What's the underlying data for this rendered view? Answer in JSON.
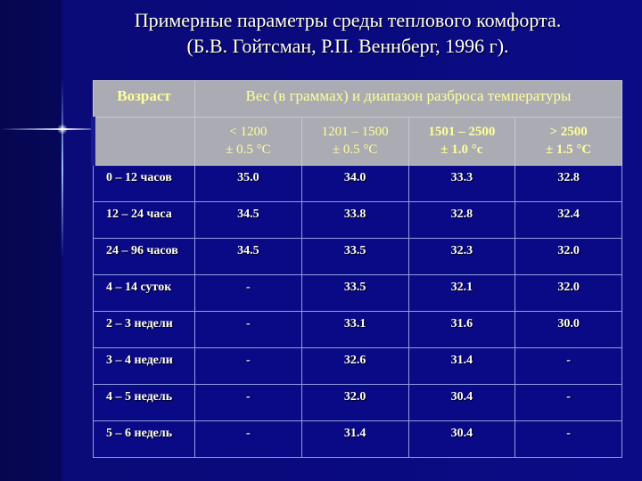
{
  "title": {
    "line1": "Примерные параметры среды теплового комфорта.",
    "line2": "(Б.В. Гойтсман, Р.П. Веннберг, 1996 г)."
  },
  "table": {
    "age_header": "Возраст",
    "weight_header": "Вес (в граммах) и диапазон разброса температуры",
    "columns": [
      {
        "weight": "< 1200",
        "range": "± 0.5 °C"
      },
      {
        "weight": "1201 – 1500",
        "range": "± 0.5 °C"
      },
      {
        "weight": "1501 – 2500",
        "range": "± 1.0 °c"
      },
      {
        "weight": "> 2500",
        "range": "± 1.5 °C"
      }
    ],
    "rows": [
      {
        "age": "0 – 12 часов",
        "values": [
          "35.0",
          "34.0",
          "33.3",
          "32.8"
        ]
      },
      {
        "age": "12 – 24 часа",
        "values": [
          "34.5",
          "33.8",
          "32.8",
          "32.4"
        ]
      },
      {
        "age": "24 – 96 часов",
        "values": [
          "34.5",
          "33.5",
          "32.3",
          "32.0"
        ]
      },
      {
        "age": "4 – 14 суток",
        "values": [
          "-",
          "33.5",
          "32.1",
          "32.0"
        ]
      },
      {
        "age": "2 – 3 недели",
        "values": [
          "-",
          "33.1",
          "31.6",
          "30.0"
        ]
      },
      {
        "age": "3 – 4 недели",
        "values": [
          "-",
          "32.6",
          "31.4",
          "-"
        ]
      },
      {
        "age": "4 – 5 недель",
        "values": [
          "-",
          "32.0",
          "30.4",
          "-"
        ]
      },
      {
        "age": "5 – 6 недель",
        "values": [
          "-",
          "31.4",
          "30.4",
          "-"
        ]
      }
    ]
  },
  "colors": {
    "background": "#0a0a78",
    "header_bg": "#ababb3",
    "header_text": "#ffff99",
    "cell_text": "#ffffff"
  }
}
